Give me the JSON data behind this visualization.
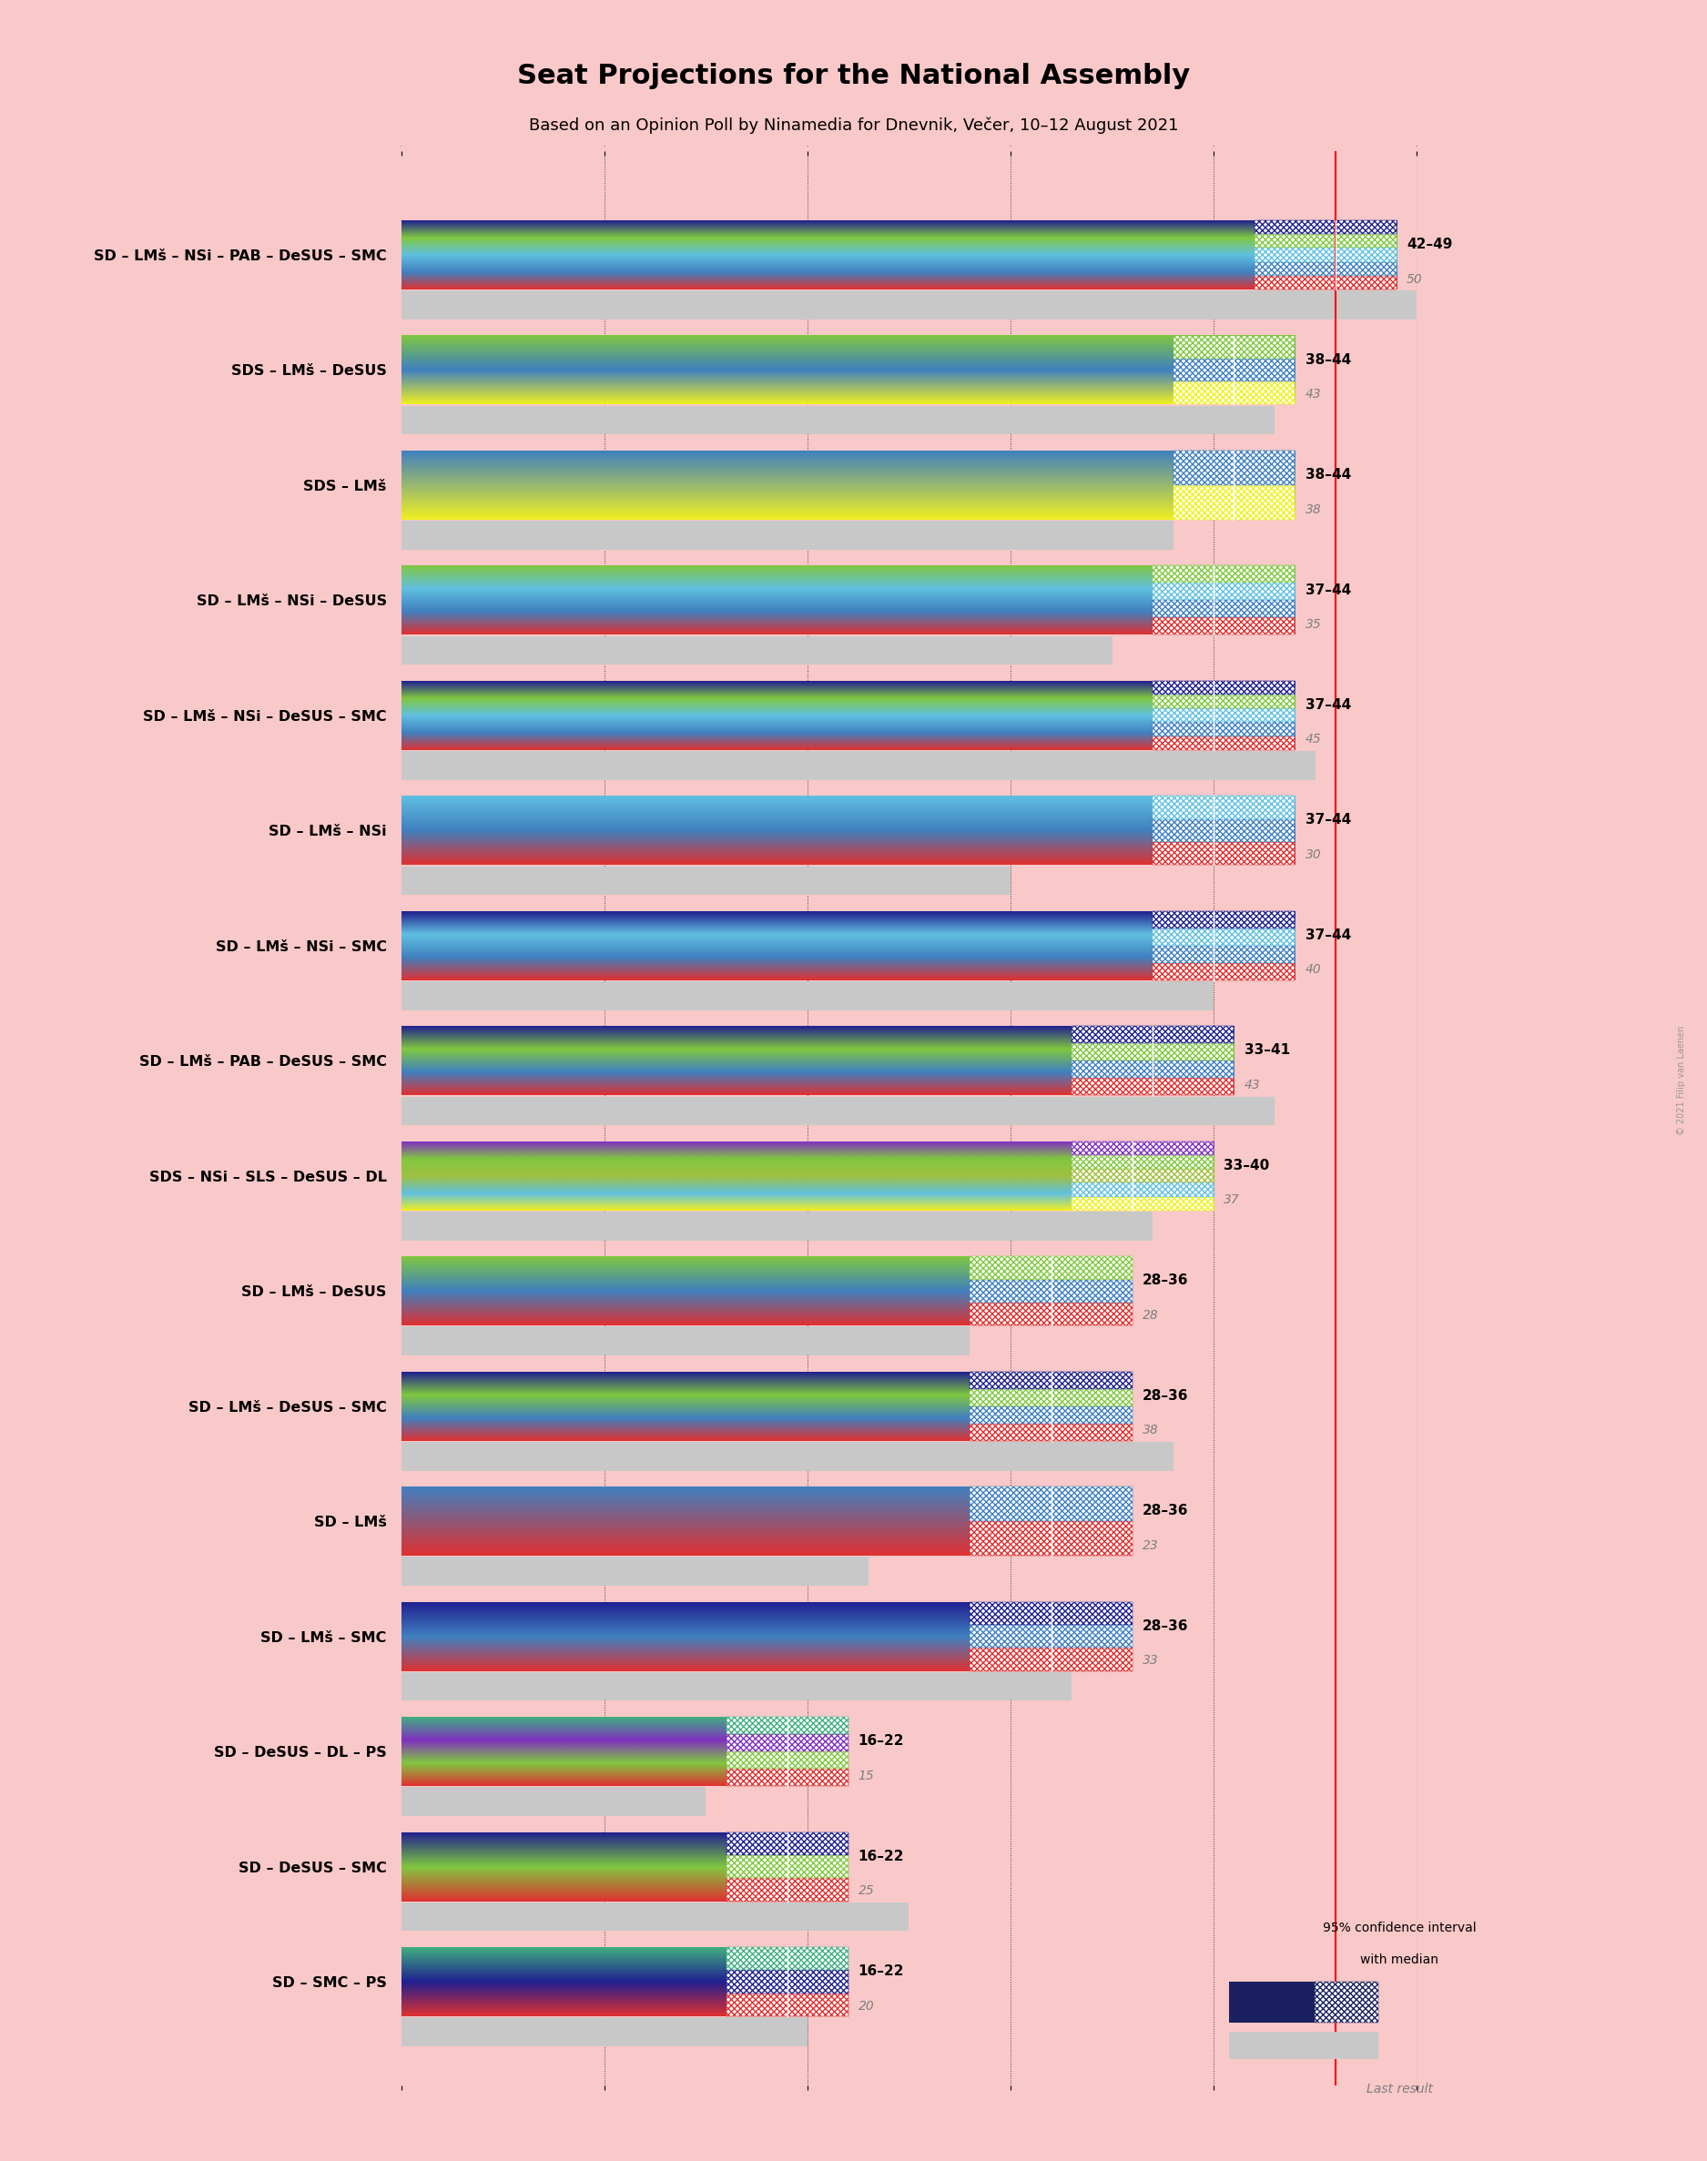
{
  "title": "Seat Projections for the National Assembly",
  "subtitle": "Based on an Opinion Poll by Ninamedia for Dnevnik, Večer, 10–12 August 2021",
  "background_color": "#f9c8c8",
  "bar_bg_color": "#c8c8c8",
  "coalitions": [
    {
      "label": "SD – LMš – NSi – PAB – DeSUS – SMC",
      "low": 42,
      "high": 49,
      "median": 46,
      "last": 50,
      "colors": [
        "#e03030",
        "#4080c0",
        "#60c0e0",
        "#80c840",
        "#202090"
      ]
    },
    {
      "label": "SDS – LMš – DeSUS",
      "low": 38,
      "high": 44,
      "median": 41,
      "last": 43,
      "colors": [
        "#f0f020",
        "#4080c0",
        "#80c840"
      ]
    },
    {
      "label": "SDS – LMš",
      "low": 38,
      "high": 44,
      "median": 41,
      "last": 38,
      "colors": [
        "#f0f020",
        "#4080c0"
      ]
    },
    {
      "label": "SD – LMš – NSi – DeSUS",
      "low": 37,
      "high": 44,
      "median": 40,
      "last": 35,
      "colors": [
        "#e03030",
        "#4080c0",
        "#60c0e0",
        "#80c840"
      ]
    },
    {
      "label": "SD – LMš – NSi – DeSUS – SMC",
      "low": 37,
      "high": 44,
      "median": 40,
      "last": 45,
      "colors": [
        "#e03030",
        "#4080c0",
        "#60c0e0",
        "#80c840",
        "#202090"
      ]
    },
    {
      "label": "SD – LMš – NSi",
      "low": 37,
      "high": 44,
      "median": 40,
      "last": 30,
      "colors": [
        "#e03030",
        "#4080c0",
        "#60c0e0"
      ]
    },
    {
      "label": "SD – LMš – NSi – SMC",
      "low": 37,
      "high": 44,
      "median": 40,
      "last": 40,
      "colors": [
        "#e03030",
        "#4080c0",
        "#60c0e0",
        "#202090"
      ]
    },
    {
      "label": "SD – LMš – PAB – DeSUS – SMC",
      "low": 33,
      "high": 41,
      "median": 37,
      "last": 43,
      "colors": [
        "#e03030",
        "#4080c0",
        "#80c840",
        "#202090"
      ]
    },
    {
      "label": "SDS – NSi – SLS – DeSUS – DL",
      "low": 33,
      "high": 40,
      "median": 36,
      "last": 37,
      "colors": [
        "#f0f020",
        "#60c0e0",
        "#a0c040",
        "#80c840",
        "#8030c0"
      ]
    },
    {
      "label": "SD – LMš – DeSUS",
      "low": 28,
      "high": 36,
      "median": 32,
      "last": 28,
      "colors": [
        "#e03030",
        "#4080c0",
        "#80c840"
      ]
    },
    {
      "label": "SD – LMš – DeSUS – SMC",
      "low": 28,
      "high": 36,
      "median": 32,
      "last": 38,
      "colors": [
        "#e03030",
        "#4080c0",
        "#80c840",
        "#202090"
      ]
    },
    {
      "label": "SD – LMš",
      "low": 28,
      "high": 36,
      "median": 32,
      "last": 23,
      "colors": [
        "#e03030",
        "#4080c0"
      ]
    },
    {
      "label": "SD – LMš – SMC",
      "low": 28,
      "high": 36,
      "median": 32,
      "last": 33,
      "colors": [
        "#e03030",
        "#4080c0",
        "#202090"
      ]
    },
    {
      "label": "SD – DeSUS – DL – PS",
      "low": 16,
      "high": 22,
      "median": 19,
      "last": 15,
      "colors": [
        "#e03030",
        "#80c840",
        "#8030c0",
        "#40b080"
      ]
    },
    {
      "label": "SD – DeSUS – SMC",
      "low": 16,
      "high": 22,
      "median": 19,
      "last": 25,
      "colors": [
        "#e03030",
        "#80c840",
        "#202090"
      ]
    },
    {
      "label": "SD – SMC – PS",
      "low": 16,
      "high": 22,
      "median": 19,
      "last": 20,
      "colors": [
        "#e03030",
        "#202090",
        "#40b080"
      ]
    }
  ],
  "xmin": 0,
  "xmax": 50,
  "majority_line": 46,
  "bar_height": 0.6,
  "last_bar_height": 0.25,
  "gradient_steps": 200
}
